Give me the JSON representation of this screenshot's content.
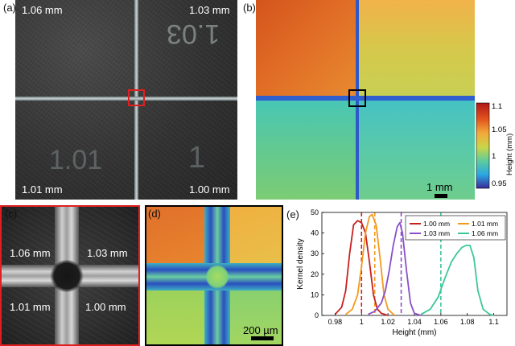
{
  "panels": {
    "a": {
      "tag": "(a)",
      "labels": {
        "tl": "1.06 mm",
        "tr": "1.03 mm",
        "bl": "1.01 mm",
        "br": "1.00 mm"
      },
      "engraved_tr": "1.03",
      "engraved_bl": "1.01",
      "engraved_br": "1"
    },
    "b": {
      "tag": "(b)",
      "scalebar": "1 mm",
      "colorbar": {
        "ticks": [
          "1.1",
          "1.05",
          "1",
          "0.95"
        ],
        "label": "Height (mm)"
      }
    },
    "c": {
      "tag": "(c)",
      "labels": {
        "tl": "1.06 mm",
        "tr": "1.03 mm",
        "bl": "1.01 mm",
        "br": "1.00 mm"
      }
    },
    "d": {
      "tag": "(d)",
      "scalebar": "200 µm"
    },
    "e": {
      "tag": "(e)"
    }
  },
  "colors": {
    "red_box": "#e02020",
    "black_box": "#000000",
    "s100": "#c8201e",
    "s101": "#f39a1e",
    "s103": "#8a4fc8",
    "s106": "#3cc79a"
  },
  "chart_data": {
    "type": "line",
    "xlabel": "Height (mm)",
    "ylabel": "Kernel density",
    "xlim": [
      0.97,
      1.11
    ],
    "ylim": [
      0,
      50
    ],
    "xticks": [
      "0.98",
      "1",
      "1.02",
      "1.04",
      "1.06",
      "1.08",
      "1.1"
    ],
    "yticks": [
      "0",
      "10",
      "20",
      "30",
      "40",
      "50"
    ],
    "legend_position": "top-right",
    "series": [
      {
        "name": "1.00 mm",
        "color": "#c8201e",
        "dashed_at": 1.0,
        "x": [
          0.98,
          0.985,
          0.988,
          0.991,
          0.994,
          0.997,
          1.0,
          1.003,
          1.006,
          1.009,
          1.012,
          1.015,
          1.02
        ],
        "y": [
          0.5,
          4,
          12,
          30,
          44,
          46,
          45,
          40,
          26,
          10,
          3,
          1,
          0
        ]
      },
      {
        "name": "1.01 mm",
        "color": "#f39a1e",
        "dashed_at": 1.01,
        "x": [
          0.988,
          0.993,
          0.997,
          1.0,
          1.003,
          1.006,
          1.008,
          1.011,
          1.014,
          1.017,
          1.02,
          1.025
        ],
        "y": [
          0.5,
          3,
          10,
          24,
          40,
          48,
          49,
          44,
          28,
          10,
          3,
          0
        ]
      },
      {
        "name": "1.03 mm",
        "color": "#8a4fc8",
        "dashed_at": 1.03,
        "x": [
          1.005,
          1.01,
          1.015,
          1.018,
          1.021,
          1.024,
          1.027,
          1.029,
          1.031,
          1.034,
          1.037,
          1.04,
          1.045
        ],
        "y": [
          0.5,
          2,
          6,
          12,
          22,
          34,
          43,
          45,
          40,
          22,
          6,
          1,
          0
        ]
      },
      {
        "name": "1.06 mm",
        "color": "#3cc79a",
        "dashed_at": 1.06,
        "x": [
          1.045,
          1.052,
          1.058,
          1.063,
          1.068,
          1.072,
          1.076,
          1.079,
          1.082,
          1.085,
          1.088,
          1.092,
          1.097,
          1.1
        ],
        "y": [
          0.5,
          3,
          9,
          18,
          26,
          30,
          33,
          34,
          34,
          28,
          12,
          3,
          0.5,
          0
        ]
      }
    ]
  }
}
